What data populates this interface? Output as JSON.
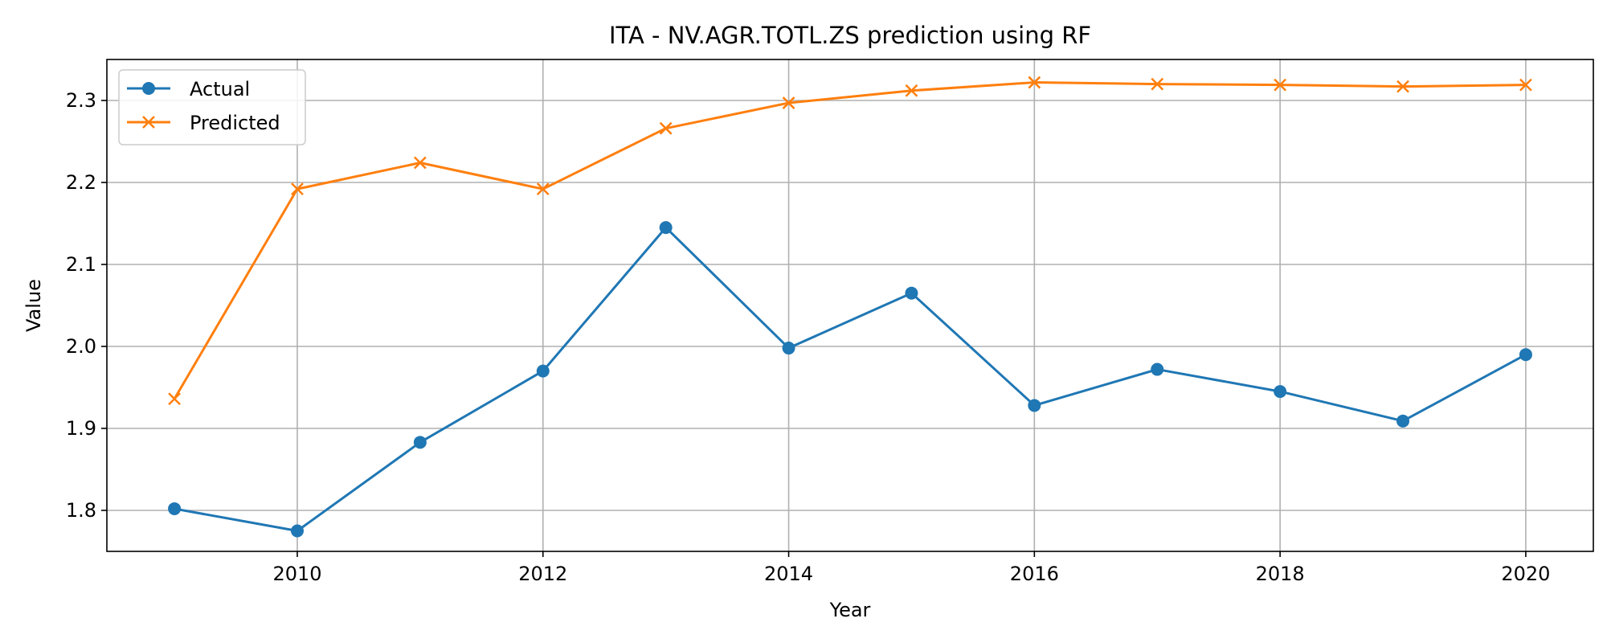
{
  "chart_data": {
    "type": "line",
    "title": "ITA - NV.AGR.TOTL.ZS prediction using RF",
    "xlabel": "Year",
    "ylabel": "Value",
    "x": [
      2009,
      2010,
      2011,
      2012,
      2013,
      2014,
      2015,
      2016,
      2017,
      2018,
      2019,
      2020
    ],
    "xlim": [
      2008.45,
      2020.55
    ],
    "ylim": [
      1.75,
      2.35
    ],
    "xticks": [
      2010,
      2012,
      2014,
      2016,
      2018,
      2020
    ],
    "yticks": [
      1.8,
      1.9,
      2.0,
      2.1,
      2.2,
      2.3
    ],
    "ytick_labels": [
      "1.8",
      "1.9",
      "2.0",
      "2.1",
      "2.2",
      "2.3"
    ],
    "grid": true,
    "legend_position": "top-left",
    "series": [
      {
        "name": "Actual",
        "color": "#1f77b4",
        "marker": "circle",
        "values": [
          1.802,
          1.775,
          1.883,
          1.97,
          2.145,
          1.998,
          2.065,
          1.928,
          1.972,
          1.945,
          1.909,
          1.99
        ]
      },
      {
        "name": "Predicted",
        "color": "#ff7f0e",
        "marker": "x",
        "values": [
          1.936,
          2.192,
          2.224,
          2.192,
          2.266,
          2.297,
          2.312,
          2.322,
          2.32,
          2.319,
          2.317,
          2.319
        ]
      }
    ]
  }
}
